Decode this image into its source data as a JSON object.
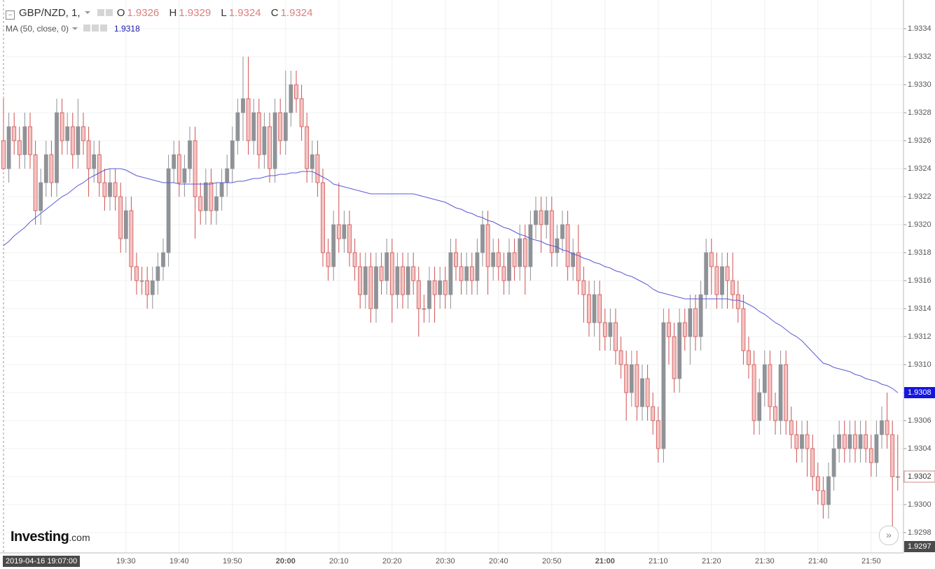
{
  "chart_data": {
    "type": "candlestick",
    "title": "GBP/NZD, 1,",
    "ohlc_letters": [
      "O",
      "H",
      "L",
      "C"
    ],
    "up_color": "#8f9296",
    "down_color": "#f4c4c4",
    "down_edge": "#d0504f",
    "grid": true,
    "categories": [
      null,
      null,
      null,
      null,
      null,
      null,
      null,
      null,
      null,
      null,
      null,
      null,
      null,
      null,
      null,
      null,
      null,
      null,
      null,
      null,
      null,
      null,
      null,
      "19:30",
      null,
      null,
      null,
      null,
      null,
      null,
      null,
      null,
      null,
      "19:40",
      null,
      null,
      null,
      null,
      null,
      null,
      null,
      null,
      null,
      "19:50",
      null,
      null,
      null,
      null,
      null,
      null,
      null,
      null,
      null,
      "20:00",
      null,
      null,
      null,
      null,
      null,
      null,
      null,
      null,
      null,
      "20:10",
      null,
      null,
      null,
      null,
      null,
      null,
      null,
      null,
      null,
      "20:20",
      null,
      null,
      null,
      null,
      null,
      null,
      null,
      null,
      null,
      "20:30",
      null,
      null,
      null,
      null,
      null,
      null,
      null,
      null,
      null,
      "20:40",
      null,
      null,
      null,
      null,
      null,
      null,
      null,
      null,
      null,
      "20:50",
      null,
      null,
      null,
      null,
      null,
      null,
      null,
      null,
      null,
      "21:00",
      null,
      null,
      null,
      null,
      null,
      null,
      null,
      null,
      null,
      "21:10",
      null,
      null,
      null,
      null,
      null,
      null,
      null,
      null,
      null,
      "21:20",
      null,
      null,
      null,
      null,
      null,
      null,
      null,
      null,
      null,
      "21:30",
      null,
      null,
      null,
      null,
      null,
      null,
      null,
      null,
      null,
      "21:40",
      null,
      null,
      null,
      null,
      null,
      null,
      null,
      null,
      null,
      "21:50",
      null,
      null,
      null,
      null,
      null
    ],
    "ohlc": [
      [
        1.9326,
        1.9329,
        1.9324,
        1.9324
      ],
      [
        1.9324,
        1.9328,
        1.9323,
        1.9327
      ],
      [
        1.9327,
        1.9328,
        1.9325,
        1.9326
      ],
      [
        1.9326,
        1.9327,
        1.9324,
        1.9325
      ],
      [
        1.9325,
        1.9328,
        1.9324,
        1.9327
      ],
      [
        1.9327,
        1.9328,
        1.9324,
        1.9325
      ],
      [
        1.9325,
        1.9326,
        1.932,
        1.9321
      ],
      [
        1.9321,
        1.9324,
        1.932,
        1.9323
      ],
      [
        1.9323,
        1.9326,
        1.9322,
        1.9325
      ],
      [
        1.9325,
        1.9326,
        1.9322,
        1.9323
      ],
      [
        1.9323,
        1.9329,
        1.9322,
        1.9328
      ],
      [
        1.9328,
        1.9329,
        1.9325,
        1.9326
      ],
      [
        1.9326,
        1.9328,
        1.9325,
        1.9327
      ],
      [
        1.9327,
        1.9328,
        1.9324,
        1.9325
      ],
      [
        1.9325,
        1.9329,
        1.9324,
        1.9327
      ],
      [
        1.9327,
        1.9328,
        1.9325,
        1.9326
      ],
      [
        1.9326,
        1.9327,
        1.9322,
        1.9324
      ],
      [
        1.9324,
        1.9326,
        1.9323,
        1.9325
      ],
      [
        1.9325,
        1.9326,
        1.9322,
        1.9323
      ],
      [
        1.9323,
        1.9324,
        1.9321,
        1.9322
      ],
      [
        1.9322,
        1.9324,
        1.9321,
        1.9323
      ],
      [
        1.9323,
        1.9324,
        1.9321,
        1.9322
      ],
      [
        1.9322,
        1.9323,
        1.9318,
        1.9319
      ],
      [
        1.9319,
        1.9322,
        1.9318,
        1.9321
      ],
      [
        1.9321,
        1.9322,
        1.9316,
        1.9317
      ],
      [
        1.9317,
        1.9318,
        1.9315,
        1.9316
      ],
      [
        1.9316,
        1.9317,
        1.9315,
        1.9316
      ],
      [
        1.9316,
        1.9317,
        1.9314,
        1.9315
      ],
      [
        1.9315,
        1.9317,
        1.9314,
        1.9316
      ],
      [
        1.9316,
        1.9318,
        1.9315,
        1.9317
      ],
      [
        1.9317,
        1.9319,
        1.9316,
        1.9318
      ],
      [
        1.9318,
        1.9325,
        1.9317,
        1.9324
      ],
      [
        1.9324,
        1.9326,
        1.9323,
        1.9325
      ],
      [
        1.9325,
        1.9326,
        1.9322,
        1.9323
      ],
      [
        1.9323,
        1.9325,
        1.9322,
        1.9324
      ],
      [
        1.9324,
        1.9327,
        1.9323,
        1.9326
      ],
      [
        1.9326,
        1.9327,
        1.9319,
        1.9322
      ],
      [
        1.9322,
        1.9323,
        1.932,
        1.9321
      ],
      [
        1.9321,
        1.9324,
        1.932,
        1.9323
      ],
      [
        1.9323,
        1.9324,
        1.932,
        1.9321
      ],
      [
        1.9321,
        1.9323,
        1.932,
        1.9322
      ],
      [
        1.9322,
        1.9324,
        1.9321,
        1.9323
      ],
      [
        1.9323,
        1.9325,
        1.9322,
        1.9324
      ],
      [
        1.9324,
        1.9327,
        1.9323,
        1.9326
      ],
      [
        1.9326,
        1.9329,
        1.9325,
        1.9328
      ],
      [
        1.9328,
        1.9332,
        1.9326,
        1.9329
      ],
      [
        1.9329,
        1.9332,
        1.9325,
        1.9326
      ],
      [
        1.9326,
        1.9329,
        1.9325,
        1.9328
      ],
      [
        1.9328,
        1.9329,
        1.9324,
        1.9325
      ],
      [
        1.9325,
        1.9328,
        1.9324,
        1.9327
      ],
      [
        1.9327,
        1.9328,
        1.9323,
        1.9324
      ],
      [
        1.9324,
        1.9329,
        1.9323,
        1.9328
      ],
      [
        1.9328,
        1.9329,
        1.9325,
        1.9326
      ],
      [
        1.9326,
        1.9331,
        1.9325,
        1.9328
      ],
      [
        1.9328,
        1.9331,
        1.9327,
        1.933
      ],
      [
        1.933,
        1.9331,
        1.9328,
        1.9329
      ],
      [
        1.9329,
        1.933,
        1.9326,
        1.9327
      ],
      [
        1.9327,
        1.9328,
        1.9323,
        1.9324
      ],
      [
        1.9324,
        1.9326,
        1.9323,
        1.9325
      ],
      [
        1.9325,
        1.9326,
        1.9322,
        1.9323
      ],
      [
        1.9323,
        1.9324,
        1.9317,
        1.9318
      ],
      [
        1.9318,
        1.9319,
        1.9316,
        1.9317
      ],
      [
        1.9317,
        1.9321,
        1.9316,
        1.932
      ],
      [
        1.932,
        1.9323,
        1.9318,
        1.9319
      ],
      [
        1.9319,
        1.9321,
        1.9318,
        1.932
      ],
      [
        1.932,
        1.9321,
        1.9317,
        1.9318
      ],
      [
        1.9318,
        1.9319,
        1.9316,
        1.9317
      ],
      [
        1.9317,
        1.9318,
        1.9314,
        1.9315
      ],
      [
        1.9315,
        1.9318,
        1.9314,
        1.9317
      ],
      [
        1.9317,
        1.9318,
        1.9313,
        1.9314
      ],
      [
        1.9314,
        1.9318,
        1.9313,
        1.9317
      ],
      [
        1.9317,
        1.9318,
        1.9315,
        1.9316
      ],
      [
        1.9316,
        1.9319,
        1.9315,
        1.9318
      ],
      [
        1.9318,
        1.9319,
        1.9313,
        1.9315
      ],
      [
        1.9315,
        1.9318,
        1.9314,
        1.9317
      ],
      [
        1.9317,
        1.9318,
        1.9314,
        1.9315
      ],
      [
        1.9315,
        1.9318,
        1.9314,
        1.9317
      ],
      [
        1.9317,
        1.9318,
        1.9315,
        1.9316
      ],
      [
        1.9316,
        1.9317,
        1.9312,
        1.9314
      ],
      [
        1.9314,
        1.9315,
        1.9313,
        1.9314
      ],
      [
        1.9314,
        1.9317,
        1.9313,
        1.9316
      ],
      [
        1.9316,
        1.9317,
        1.9313,
        1.9315
      ],
      [
        1.9315,
        1.9317,
        1.9314,
        1.9316
      ],
      [
        1.9316,
        1.9317,
        1.9314,
        1.9315
      ],
      [
        1.9315,
        1.9319,
        1.9314,
        1.9318
      ],
      [
        1.9318,
        1.9319,
        1.9316,
        1.9317
      ],
      [
        1.9317,
        1.9318,
        1.9315,
        1.9316
      ],
      [
        1.9316,
        1.9318,
        1.9315,
        1.9317
      ],
      [
        1.9317,
        1.9318,
        1.9315,
        1.9316
      ],
      [
        1.9316,
        1.9319,
        1.9315,
        1.9318
      ],
      [
        1.9318,
        1.9321,
        1.9317,
        1.932
      ],
      [
        1.932,
        1.9321,
        1.9315,
        1.9317
      ],
      [
        1.9317,
        1.9319,
        1.9316,
        1.9318
      ],
      [
        1.9318,
        1.9319,
        1.9316,
        1.9317
      ],
      [
        1.9317,
        1.9318,
        1.9315,
        1.9316
      ],
      [
        1.9316,
        1.9319,
        1.9315,
        1.9318
      ],
      [
        1.9318,
        1.9319,
        1.9316,
        1.9317
      ],
      [
        1.9317,
        1.932,
        1.9316,
        1.9319
      ],
      [
        1.9319,
        1.932,
        1.9315,
        1.9317
      ],
      [
        1.9317,
        1.9321,
        1.9316,
        1.932
      ],
      [
        1.932,
        1.9322,
        1.9319,
        1.9321
      ],
      [
        1.9321,
        1.9322,
        1.9318,
        1.932
      ],
      [
        1.932,
        1.9322,
        1.9319,
        1.9321
      ],
      [
        1.9321,
        1.9322,
        1.9317,
        1.9318
      ],
      [
        1.9318,
        1.932,
        1.9317,
        1.9319
      ],
      [
        1.9319,
        1.9321,
        1.9318,
        1.932
      ],
      [
        1.932,
        1.9321,
        1.9316,
        1.9317
      ],
      [
        1.9317,
        1.9319,
        1.9316,
        1.9318
      ],
      [
        1.9318,
        1.932,
        1.9315,
        1.9316
      ],
      [
        1.9316,
        1.9317,
        1.9313,
        1.9315
      ],
      [
        1.9315,
        1.9316,
        1.9312,
        1.9313
      ],
      [
        1.9313,
        1.9316,
        1.9312,
        1.9315
      ],
      [
        1.9315,
        1.9316,
        1.9311,
        1.9313
      ],
      [
        1.9313,
        1.9314,
        1.9311,
        1.9312
      ],
      [
        1.9312,
        1.9314,
        1.9311,
        1.9313
      ],
      [
        1.9313,
        1.9314,
        1.931,
        1.9311
      ],
      [
        1.9311,
        1.9312,
        1.9309,
        1.931
      ],
      [
        1.931,
        1.9311,
        1.9306,
        1.9308
      ],
      [
        1.9308,
        1.9311,
        1.9307,
        1.931
      ],
      [
        1.931,
        1.9311,
        1.9306,
        1.9307
      ],
      [
        1.9307,
        1.931,
        1.9306,
        1.9309
      ],
      [
        1.9309,
        1.931,
        1.9306,
        1.9307
      ],
      [
        1.9307,
        1.9308,
        1.9305,
        1.9306
      ],
      [
        1.9306,
        1.9307,
        1.9303,
        1.9304
      ],
      [
        1.9304,
        1.9314,
        1.9303,
        1.9313
      ],
      [
        1.9313,
        1.9314,
        1.931,
        1.9312
      ],
      [
        1.9312,
        1.9313,
        1.9308,
        1.9309
      ],
      [
        1.9309,
        1.9314,
        1.9308,
        1.9313
      ],
      [
        1.9313,
        1.9314,
        1.9311,
        1.9312
      ],
      [
        1.9312,
        1.9315,
        1.931,
        1.9314
      ],
      [
        1.9314,
        1.9315,
        1.9311,
        1.9312
      ],
      [
        1.9312,
        1.9316,
        1.9311,
        1.9315
      ],
      [
        1.9315,
        1.9319,
        1.9314,
        1.9318
      ],
      [
        1.9318,
        1.9319,
        1.9315,
        1.9317
      ],
      [
        1.9317,
        1.9318,
        1.9314,
        1.9315
      ],
      [
        1.9315,
        1.9318,
        1.9314,
        1.9317
      ],
      [
        1.9317,
        1.9318,
        1.9314,
        1.9316
      ],
      [
        1.9316,
        1.9318,
        1.9314,
        1.9315
      ],
      [
        1.9315,
        1.9316,
        1.9313,
        1.9314
      ],
      [
        1.9314,
        1.9315,
        1.931,
        1.9311
      ],
      [
        1.9311,
        1.9312,
        1.9309,
        1.931
      ],
      [
        1.931,
        1.9311,
        1.9305,
        1.9306
      ],
      [
        1.9306,
        1.9309,
        1.9305,
        1.9308
      ],
      [
        1.9308,
        1.9311,
        1.9307,
        1.931
      ],
      [
        1.931,
        1.9311,
        1.9306,
        1.9307
      ],
      [
        1.9307,
        1.9308,
        1.9305,
        1.9306
      ],
      [
        1.9306,
        1.9311,
        1.9305,
        1.931
      ],
      [
        1.931,
        1.9311,
        1.9305,
        1.9306
      ],
      [
        1.9306,
        1.9307,
        1.9304,
        1.9305
      ],
      [
        1.9305,
        1.9306,
        1.9303,
        1.9304
      ],
      [
        1.9304,
        1.9306,
        1.9303,
        1.9305
      ],
      [
        1.9305,
        1.9306,
        1.9302,
        1.9304
      ],
      [
        1.9304,
        1.9305,
        1.9301,
        1.9302
      ],
      [
        1.9302,
        1.9303,
        1.93,
        1.9301
      ],
      [
        1.9301,
        1.9302,
        1.9299,
        1.93
      ],
      [
        1.93,
        1.9303,
        1.9299,
        1.9302
      ],
      [
        1.9302,
        1.9305,
        1.9301,
        1.9304
      ],
      [
        1.9304,
        1.9306,
        1.9303,
        1.9305
      ],
      [
        1.9305,
        1.9306,
        1.9303,
        1.9304
      ],
      [
        1.9304,
        1.9306,
        1.9303,
        1.9305
      ],
      [
        1.9305,
        1.9306,
        1.9303,
        1.9304
      ],
      [
        1.9304,
        1.9306,
        1.9303,
        1.9305
      ],
      [
        1.9305,
        1.9306,
        1.9303,
        1.9304
      ],
      [
        1.9304,
        1.9305,
        1.9302,
        1.9303
      ],
      [
        1.9303,
        1.9306,
        1.9302,
        1.9305
      ],
      [
        1.9305,
        1.9307,
        1.9304,
        1.9306
      ],
      [
        1.9306,
        1.9308,
        1.9304,
        1.9305
      ],
      [
        1.9305,
        1.9306,
        1.9298,
        1.9302
      ],
      [
        1.9302,
        1.9305,
        1.9301,
        1.9302
      ]
    ],
    "series": [
      {
        "name": "MA (50, close, 0)",
        "color": "#5a5ad6",
        "header_value": 1.9318,
        "values": [
          1.93185,
          1.93188,
          1.93192,
          1.93195,
          1.93198,
          1.93202,
          1.93205,
          1.93208,
          1.93211,
          1.93214,
          1.93217,
          1.9322,
          1.93222,
          1.93225,
          1.93228,
          1.9323,
          1.93233,
          1.93235,
          1.93237,
          1.93239,
          1.9324,
          1.9324,
          1.9324,
          1.93239,
          1.93237,
          1.93235,
          1.93234,
          1.93233,
          1.93232,
          1.93231,
          1.9323,
          1.9323,
          1.9323,
          1.93229,
          1.93229,
          1.93229,
          1.93229,
          1.93229,
          1.93229,
          1.93229,
          1.9323,
          1.9323,
          1.9323,
          1.9323,
          1.93231,
          1.93231,
          1.93232,
          1.93233,
          1.93233,
          1.93234,
          1.93235,
          1.93235,
          1.93236,
          1.93236,
          1.93237,
          1.93237,
          1.93238,
          1.93238,
          1.93238,
          1.93236,
          1.93234,
          1.93232,
          1.93229,
          1.93228,
          1.93227,
          1.93226,
          1.93225,
          1.93224,
          1.93223,
          1.93222,
          1.93222,
          1.93222,
          1.93222,
          1.93222,
          1.93222,
          1.93222,
          1.93222,
          1.93222,
          1.93221,
          1.9322,
          1.93219,
          1.93218,
          1.93217,
          1.93216,
          1.93214,
          1.93212,
          1.93211,
          1.93209,
          1.93208,
          1.93206,
          1.93205,
          1.93203,
          1.93202,
          1.932,
          1.93198,
          1.93197,
          1.93195,
          1.93193,
          1.93192,
          1.9319,
          1.93189,
          1.93188,
          1.93186,
          1.93185,
          1.93184,
          1.93182,
          1.93181,
          1.93179,
          1.93178,
          1.93176,
          1.93175,
          1.93173,
          1.93172,
          1.9317,
          1.93169,
          1.93167,
          1.93166,
          1.93164,
          1.93163,
          1.93161,
          1.93159,
          1.93157,
          1.93154,
          1.93152,
          1.93151,
          1.9315,
          1.93149,
          1.93148,
          1.93147,
          1.93147,
          1.93147,
          1.93147,
          1.93147,
          1.93147,
          1.93147,
          1.93147,
          1.93147,
          1.93146,
          1.93146,
          1.93145,
          1.93143,
          1.93141,
          1.93138,
          1.93136,
          1.93133,
          1.9313,
          1.93128,
          1.93125,
          1.93122,
          1.9312,
          1.93117,
          1.93113,
          1.93109,
          1.93105,
          1.93101,
          1.931,
          1.93098,
          1.93097,
          1.93096,
          1.93095,
          1.93093,
          1.93092,
          1.9309,
          1.93089,
          1.93088,
          1.93086,
          1.93085,
          1.93083,
          1.9308
        ]
      }
    ],
    "ylim": [
      1.929655,
      1.933605
    ],
    "yticks": [
      1.9334,
      1.9332,
      {
        "value": 1.933,
        "label": "1.9330"
      },
      1.9328,
      1.9326,
      1.9324,
      1.9322,
      {
        "value": 1.932,
        "label": "1.9320"
      },
      1.9318,
      1.9316,
      1.9314,
      1.9312,
      {
        "value": 1.931,
        "label": "1.9310"
      },
      1.9308,
      1.9306,
      1.9304,
      1.9302,
      {
        "value": 1.93,
        "label": "1.9300"
      },
      1.9298
    ],
    "crosshair": {
      "x_label": "2019-04-16 19:07:00",
      "y_value": 1.9297
    }
  },
  "logo": {
    "name": "Investing",
    "suffix": ".com"
  }
}
